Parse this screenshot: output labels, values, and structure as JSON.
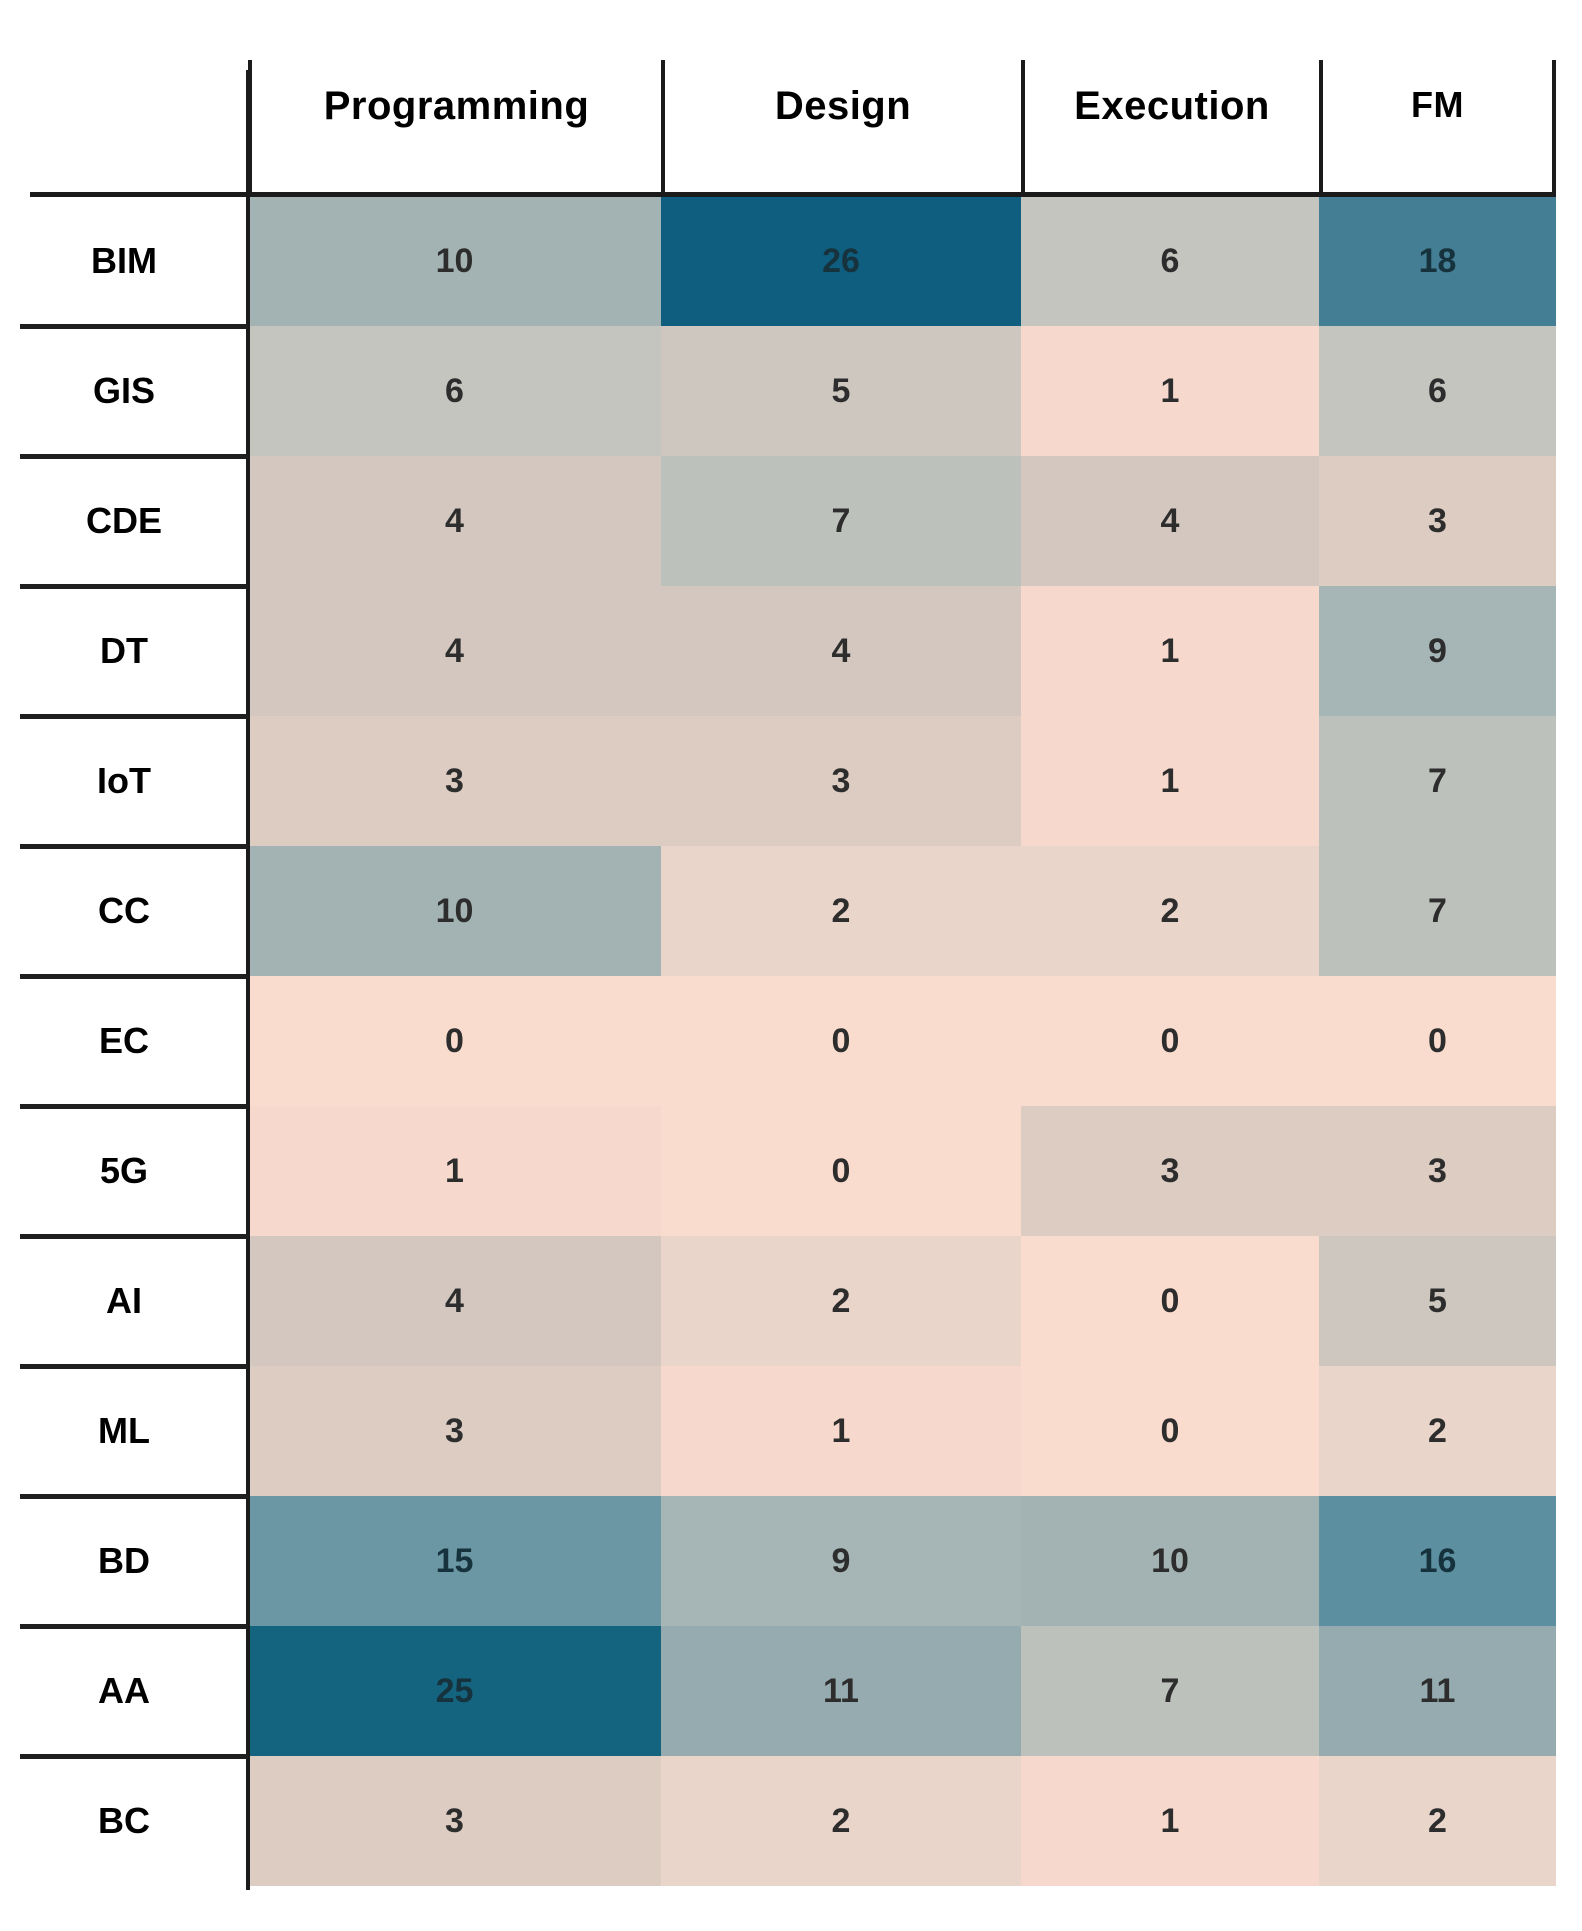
{
  "chart_data": {
    "type": "heatmap",
    "columns": [
      "Programming",
      "Design",
      "Execution",
      "FM"
    ],
    "rows": [
      "BIM",
      "GIS",
      "CDE",
      "DT",
      "IoT",
      "CC",
      "EC",
      "5G",
      "AI",
      "ML",
      "BD",
      "AA",
      "BC"
    ],
    "values": [
      [
        10,
        26,
        6,
        18
      ],
      [
        6,
        5,
        1,
        6
      ],
      [
        4,
        7,
        4,
        3
      ],
      [
        4,
        4,
        1,
        9
      ],
      [
        3,
        3,
        1,
        7
      ],
      [
        10,
        2,
        2,
        7
      ],
      [
        0,
        0,
        0,
        0
      ],
      [
        1,
        0,
        3,
        3
      ],
      [
        4,
        2,
        0,
        5
      ],
      [
        3,
        1,
        0,
        2
      ],
      [
        15,
        9,
        10,
        16
      ],
      [
        25,
        11,
        7,
        11
      ],
      [
        3,
        2,
        1,
        2
      ]
    ],
    "value_range": [
      0,
      26
    ],
    "colormap": {
      "0": "#fadccf",
      "1": "#f6d9cc",
      "2": "#e9d5ca",
      "3": "#dcccc2",
      "4": "#d3c7bf",
      "5": "#cdc7c0",
      "6": "#c4c5bf",
      "7": "#bdc1bb",
      "9": "#a6b6b7",
      "10": "#a3b3b3",
      "11": "#95abb0",
      "15": "#6b97a5",
      "16": "#5c8fa0",
      "18": "#447e94",
      "25": "#14637f",
      "26": "#0f5e7f"
    },
    "layout": {
      "legend": "none",
      "grid": "none",
      "header_separator": true,
      "row_label_separators": true
    }
  },
  "colors": {
    "background": "#ffffff",
    "line": "#1b1b1b",
    "label_text": "#000000",
    "cell_text": "#2d2d2d",
    "cell_text_dark_bg": "#16323d"
  }
}
